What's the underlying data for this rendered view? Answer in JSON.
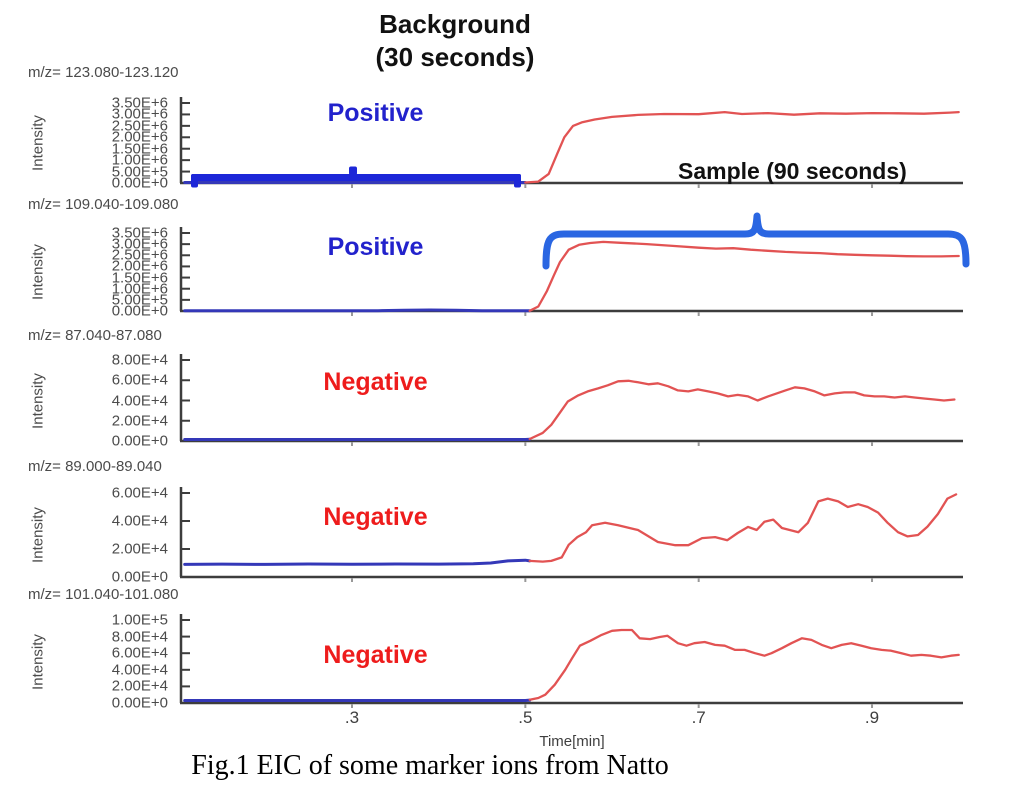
{
  "page": {
    "caption": "Fig.1 EIC of some marker ions from Natto"
  },
  "annotations": {
    "background_title": "Background",
    "background_subtitle": "(30 seconds)",
    "sample_label": "Sample (90 seconds)"
  },
  "colors": {
    "trace_red": "#e25353",
    "trace_blue": "#3438b8",
    "positive_text": "#2222cc",
    "negative_text": "#ee1c1c",
    "bracket_background": "#1d27d8",
    "bracket_sample": "#2a66e2",
    "axis": "#3d3d3d",
    "minor_tick": "#999999"
  },
  "x_axis": {
    "label": "Time[min]",
    "ticks": [
      {
        "t": 0.3,
        "label": ".3"
      },
      {
        "t": 0.5,
        "label": ".5"
      },
      {
        "t": 0.7,
        "label": ".7"
      },
      {
        "t": 0.9,
        "label": ".9"
      }
    ]
  },
  "chart_data": [
    {
      "type": "line",
      "mz_label": "m/z= 123.080-123.120",
      "polarity": "Positive",
      "ylabel": "Intensity",
      "xlabel": "Time[min]",
      "xlim": [
        0.107,
        1.0
      ],
      "ylim": [
        0,
        3500000
      ],
      "yticks": [
        "3.50E+6",
        "3.00E+6",
        "2.50E+6",
        "2.00E+6",
        "1.50E+6",
        "1.00E+6",
        "5.00E+5",
        "0.00E+0"
      ],
      "series": [
        {
          "name": "background-segment",
          "color": "trace_blue",
          "points": [
            [
              0.107,
              20000
            ],
            [
              0.5,
              20000
            ]
          ]
        },
        {
          "name": "sample-segment",
          "color": "trace_red",
          "points": [
            [
              0.5,
              20000
            ],
            [
              0.515,
              60000
            ],
            [
              0.527,
              400000
            ],
            [
              0.537,
              1300000
            ],
            [
              0.545,
              2000000
            ],
            [
              0.555,
              2500000
            ],
            [
              0.565,
              2650000
            ],
            [
              0.58,
              2780000
            ],
            [
              0.6,
              2890000
            ],
            [
              0.63,
              2980000
            ],
            [
              0.66,
              3020000
            ],
            [
              0.7,
              3010000
            ],
            [
              0.73,
              3100000
            ],
            [
              0.75,
              3020000
            ],
            [
              0.78,
              3060000
            ],
            [
              0.81,
              2990000
            ],
            [
              0.84,
              3050000
            ],
            [
              0.87,
              3030000
            ],
            [
              0.9,
              3060000
            ],
            [
              0.93,
              3050000
            ],
            [
              0.96,
              3030000
            ],
            [
              0.99,
              3080000
            ],
            [
              1.0,
              3100000
            ]
          ]
        }
      ]
    },
    {
      "type": "line",
      "mz_label": "m/z= 109.040-109.080",
      "polarity": "Positive",
      "ylabel": "Intensity",
      "xlabel": "Time[min]",
      "xlim": [
        0.107,
        1.0
      ],
      "ylim": [
        0,
        3500000
      ],
      "yticks": [
        "3.50E+6",
        "3.00E+6",
        "2.50E+6",
        "2.00E+6",
        "1.50E+6",
        "1.00E+6",
        "5.00E+5",
        "0.00E+0"
      ],
      "series": [
        {
          "name": "background-segment",
          "color": "trace_blue",
          "points": [
            [
              0.107,
              8000
            ],
            [
              0.3,
              8000
            ],
            [
              0.33,
              15000
            ],
            [
              0.36,
              35000
            ],
            [
              0.39,
              45000
            ],
            [
              0.42,
              35000
            ],
            [
              0.45,
              15000
            ],
            [
              0.48,
              8000
            ],
            [
              0.505,
              8000
            ]
          ]
        },
        {
          "name": "sample-segment",
          "color": "trace_red",
          "points": [
            [
              0.505,
              10000
            ],
            [
              0.515,
              200000
            ],
            [
              0.525,
              900000
            ],
            [
              0.533,
              1600000
            ],
            [
              0.54,
              2200000
            ],
            [
              0.55,
              2750000
            ],
            [
              0.562,
              2970000
            ],
            [
              0.575,
              3050000
            ],
            [
              0.59,
              3100000
            ],
            [
              0.61,
              3060000
            ],
            [
              0.64,
              3000000
            ],
            [
              0.67,
              2920000
            ],
            [
              0.7,
              2840000
            ],
            [
              0.72,
              2800000
            ],
            [
              0.74,
              2820000
            ],
            [
              0.76,
              2750000
            ],
            [
              0.78,
              2700000
            ],
            [
              0.8,
              2650000
            ],
            [
              0.82,
              2620000
            ],
            [
              0.84,
              2600000
            ],
            [
              0.86,
              2550000
            ],
            [
              0.88,
              2520000
            ],
            [
              0.9,
              2500000
            ],
            [
              0.92,
              2480000
            ],
            [
              0.94,
              2460000
            ],
            [
              0.96,
              2450000
            ],
            [
              0.98,
              2450000
            ],
            [
              1.0,
              2470000
            ]
          ]
        }
      ]
    },
    {
      "type": "line",
      "mz_label": "m/z= 87.040-87.080",
      "polarity": "Negative",
      "ylabel": "Intensity",
      "xlabel": "Time[min]",
      "xlim": [
        0.107,
        1.0
      ],
      "ylim": [
        0,
        80000
      ],
      "yticks": [
        "8.00E+4",
        "6.00E+4",
        "4.00E+4",
        "2.00E+4",
        "0.00E+0"
      ],
      "series": [
        {
          "name": "background-segment",
          "color": "trace_blue",
          "points": [
            [
              0.107,
              1500
            ],
            [
              0.5,
              1500
            ],
            [
              0.505,
              1800
            ]
          ]
        },
        {
          "name": "sample-segment",
          "color": "trace_red",
          "points": [
            [
              0.505,
              2000
            ],
            [
              0.52,
              8000
            ],
            [
              0.53,
              16000
            ],
            [
              0.54,
              28000
            ],
            [
              0.549,
              39000
            ],
            [
              0.561,
              45000
            ],
            [
              0.572,
              49000
            ],
            [
              0.584,
              52000
            ],
            [
              0.595,
              55000
            ],
            [
              0.607,
              59000
            ],
            [
              0.619,
              59500
            ],
            [
              0.63,
              58000
            ],
            [
              0.642,
              56000
            ],
            [
              0.653,
              57000
            ],
            [
              0.665,
              54000
            ],
            [
              0.676,
              50000
            ],
            [
              0.688,
              49000
            ],
            [
              0.699,
              51000
            ],
            [
              0.711,
              49000
            ],
            [
              0.722,
              47000
            ],
            [
              0.734,
              44000
            ],
            [
              0.745,
              45500
            ],
            [
              0.757,
              44000
            ],
            [
              0.768,
              40000
            ],
            [
              0.78,
              44000
            ],
            [
              0.79,
              47000
            ],
            [
              0.8,
              50000
            ],
            [
              0.811,
              53000
            ],
            [
              0.822,
              52000
            ],
            [
              0.834,
              49000
            ],
            [
              0.845,
              45000
            ],
            [
              0.857,
              47000
            ],
            [
              0.868,
              48000
            ],
            [
              0.88,
              48000
            ],
            [
              0.891,
              45000
            ],
            [
              0.903,
              44000
            ],
            [
              0.914,
              44000
            ],
            [
              0.926,
              43000
            ],
            [
              0.938,
              44000
            ],
            [
              0.949,
              43000
            ],
            [
              0.96,
              42000
            ],
            [
              0.972,
              41000
            ],
            [
              0.983,
              40000
            ],
            [
              0.995,
              41000
            ]
          ]
        }
      ]
    },
    {
      "type": "line",
      "mz_label": "m/z= 89.000-89.040",
      "polarity": "Negative",
      "ylabel": "Intensity",
      "xlabel": "Time[min]",
      "xlim": [
        0.107,
        1.0
      ],
      "ylim": [
        0,
        60000
      ],
      "yticks": [
        "6.00E+4",
        "4.00E+4",
        "2.00E+4",
        "0.00E+0"
      ],
      "series": [
        {
          "name": "background-segment",
          "color": "trace_blue",
          "points": [
            [
              0.107,
              9000
            ],
            [
              0.15,
              9200
            ],
            [
              0.2,
              9000
            ],
            [
              0.25,
              9300
            ],
            [
              0.3,
              9100
            ],
            [
              0.35,
              9300
            ],
            [
              0.4,
              9200
            ],
            [
              0.44,
              9500
            ],
            [
              0.46,
              10000
            ],
            [
              0.48,
              11500
            ],
            [
              0.5,
              12000
            ],
            [
              0.505,
              11500
            ]
          ]
        },
        {
          "name": "sample-segment",
          "color": "trace_red",
          "points": [
            [
              0.505,
              11500
            ],
            [
              0.52,
              11000
            ],
            [
              0.53,
              11500
            ],
            [
              0.542,
              14000
            ],
            [
              0.55,
              23000
            ],
            [
              0.56,
              28500
            ],
            [
              0.57,
              32000
            ],
            [
              0.577,
              37000
            ],
            [
              0.592,
              38700
            ],
            [
              0.607,
              37000
            ],
            [
              0.63,
              33600
            ],
            [
              0.653,
              25000
            ],
            [
              0.673,
              22700
            ],
            [
              0.688,
              22700
            ],
            [
              0.704,
              27800
            ],
            [
              0.719,
              28500
            ],
            [
              0.733,
              26300
            ],
            [
              0.745,
              31400
            ],
            [
              0.757,
              35800
            ],
            [
              0.767,
              33600
            ],
            [
              0.776,
              39500
            ],
            [
              0.786,
              41000
            ],
            [
              0.796,
              35000
            ],
            [
              0.805,
              33600
            ],
            [
              0.815,
              32000
            ],
            [
              0.826,
              38700
            ],
            [
              0.838,
              54000
            ],
            [
              0.849,
              56000
            ],
            [
              0.861,
              54000
            ],
            [
              0.872,
              50000
            ],
            [
              0.884,
              52000
            ],
            [
              0.895,
              50000
            ],
            [
              0.907,
              46000
            ],
            [
              0.918,
              38700
            ],
            [
              0.93,
              32000
            ],
            [
              0.941,
              29000
            ],
            [
              0.953,
              30000
            ],
            [
              0.964,
              36000
            ],
            [
              0.976,
              45000
            ],
            [
              0.987,
              56000
            ],
            [
              0.997,
              59000
            ]
          ]
        }
      ]
    },
    {
      "type": "line",
      "mz_label": "m/z= 101.040-101.080",
      "polarity": "Negative",
      "ylabel": "Intensity",
      "xlabel": "Time[min]",
      "xlim": [
        0.107,
        1.0
      ],
      "ylim": [
        0,
        100000
      ],
      "yticks": [
        "1.00E+5",
        "8.00E+4",
        "6.00E+4",
        "4.00E+4",
        "2.00E+4",
        "0.00E+0"
      ],
      "series": [
        {
          "name": "background-segment",
          "color": "trace_blue",
          "points": [
            [
              0.107,
              3000
            ],
            [
              0.5,
              3000
            ],
            [
              0.505,
              3500
            ]
          ]
        },
        {
          "name": "sample-segment",
          "color": "trace_red",
          "points": [
            [
              0.505,
              4000
            ],
            [
              0.515,
              6000
            ],
            [
              0.523,
              10000
            ],
            [
              0.534,
              22000
            ],
            [
              0.546,
              40000
            ],
            [
              0.554,
              54000
            ],
            [
              0.563,
              69000
            ],
            [
              0.575,
              75000
            ],
            [
              0.588,
              82000
            ],
            [
              0.6,
              87000
            ],
            [
              0.611,
              88000
            ],
            [
              0.623,
              88000
            ],
            [
              0.632,
              78000
            ],
            [
              0.644,
              77000
            ],
            [
              0.655,
              79500
            ],
            [
              0.664,
              81000
            ],
            [
              0.676,
              72000
            ],
            [
              0.686,
              69000
            ],
            [
              0.695,
              72000
            ],
            [
              0.707,
              73500
            ],
            [
              0.719,
              70000
            ],
            [
              0.73,
              69000
            ],
            [
              0.742,
              64000
            ],
            [
              0.753,
              64000
            ],
            [
              0.765,
              60000
            ],
            [
              0.776,
              57000
            ],
            [
              0.784,
              60000
            ],
            [
              0.796,
              66000
            ],
            [
              0.807,
              72000
            ],
            [
              0.819,
              78000
            ],
            [
              0.83,
              76000
            ],
            [
              0.842,
              70000
            ],
            [
              0.853,
              66000
            ],
            [
              0.865,
              70000
            ],
            [
              0.876,
              72000
            ],
            [
              0.888,
              69000
            ],
            [
              0.899,
              66000
            ],
            [
              0.911,
              64000
            ],
            [
              0.922,
              63000
            ],
            [
              0.934,
              60000
            ],
            [
              0.945,
              57000
            ],
            [
              0.957,
              58000
            ],
            [
              0.968,
              57000
            ],
            [
              0.98,
              55000
            ],
            [
              0.991,
              57000
            ],
            [
              1.0,
              58000
            ]
          ]
        }
      ]
    }
  ]
}
